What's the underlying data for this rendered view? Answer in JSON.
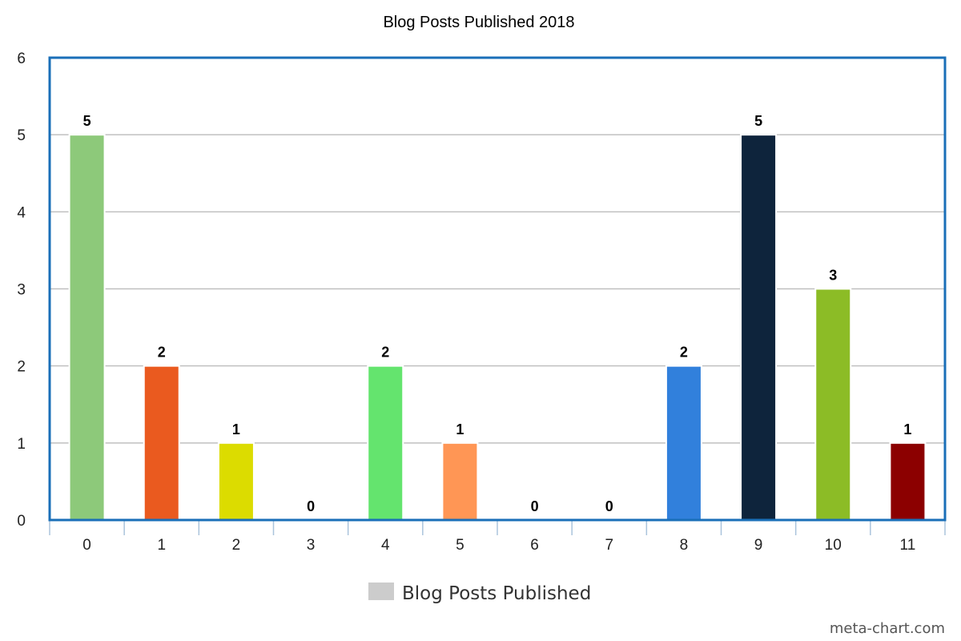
{
  "chart_data": {
    "type": "bar",
    "title": "Blog Posts Published 2018",
    "categories": [
      "0",
      "1",
      "2",
      "3",
      "4",
      "5",
      "6",
      "7",
      "8",
      "9",
      "10",
      "11"
    ],
    "series": [
      {
        "name": "Blog Posts Published",
        "values": [
          5,
          2,
          1,
          0,
          2,
          1,
          0,
          0,
          2,
          5,
          3,
          1
        ]
      }
    ],
    "bar_colors": [
      "#8dc97a",
      "#ea5a1f",
      "#dcdc00",
      "#cccccc",
      "#64e46e",
      "#ff9655",
      "#cccccc",
      "#cccccc",
      "#3180dc",
      "#0e243c",
      "#8cbc26",
      "#8c0000"
    ],
    "ylim": [
      0,
      6
    ],
    "yticks": [
      "0",
      "1",
      "2",
      "3",
      "4",
      "5",
      "6"
    ],
    "grid": true,
    "legend_placement": "bottom-center",
    "legend_color": "#cccccc",
    "frame_color": "#1a6fb8",
    "grid_color": "#c0c0c0",
    "xlabel": "",
    "ylabel": ""
  },
  "watermark": "meta-chart.com"
}
